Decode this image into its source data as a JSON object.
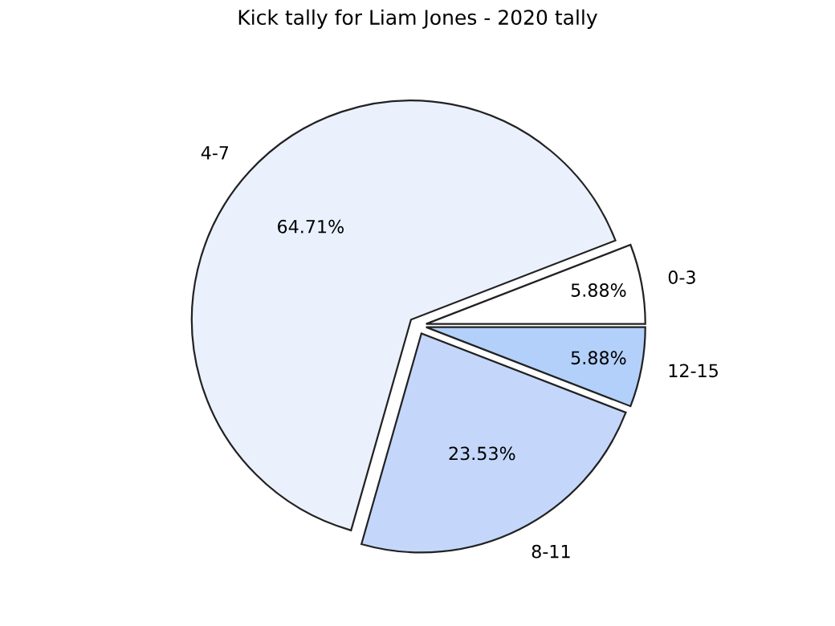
{
  "chart_data": {
    "type": "pie",
    "title": "Kick tally for Liam Jones - 2020 tally",
    "categories": [
      "0-3",
      "4-7",
      "8-11",
      "12-15"
    ],
    "values": [
      5.88,
      64.71,
      23.53,
      5.88
    ],
    "value_labels": [
      "5.88%",
      "64.71%",
      "23.53%",
      "5.88%"
    ],
    "colors": [
      "#ffffff",
      "#eaf1fd",
      "#c4d7fb",
      "#b3d0fb"
    ],
    "legend": false
  }
}
